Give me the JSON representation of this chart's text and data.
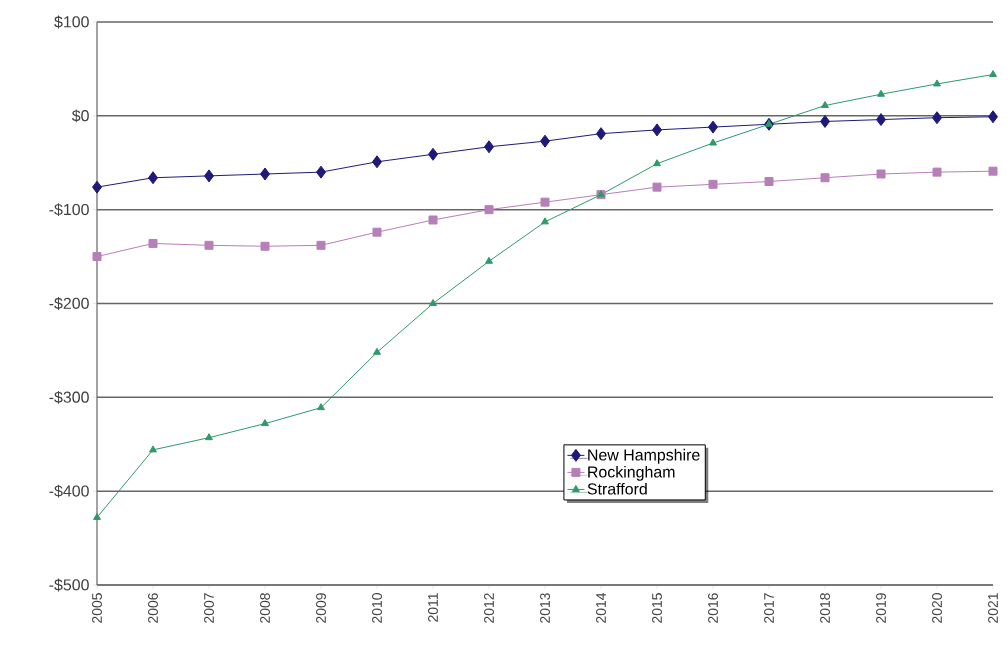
{
  "chart_data": {
    "type": "line",
    "categories": [
      "2005",
      "2006",
      "2007",
      "2008",
      "2009",
      "2010",
      "2011",
      "2012",
      "2013",
      "2014",
      "2015",
      "2016",
      "2017",
      "2018",
      "2019",
      "2020",
      "2021"
    ],
    "series": [
      {
        "name": "New Hampshire",
        "color": "#1f1a7a",
        "marker": "diamond",
        "values": [
          -76,
          -66,
          -64,
          -62,
          -60,
          -49,
          -41,
          -33,
          -27,
          -19,
          -15,
          -12,
          -9,
          -6,
          -4,
          -2,
          -1
        ]
      },
      {
        "name": "Rockingham",
        "color": "#b77fb7",
        "marker": "square",
        "values": [
          -150,
          -136,
          -138,
          -139,
          -138,
          -124,
          -111,
          -100,
          -92,
          -84,
          -76,
          -73,
          -70,
          -66,
          -62,
          -60,
          -59
        ]
      },
      {
        "name": "Strafford",
        "color": "#2e9a6a",
        "marker": "triangle",
        "values": [
          -428,
          -356,
          -343,
          -328,
          -311,
          -252,
          -200,
          -155,
          -113,
          -84,
          -51,
          -29,
          -9,
          11,
          23,
          34,
          44
        ]
      }
    ],
    "ylim": [
      -500,
      100
    ],
    "yticks": [
      {
        "value": -500,
        "label": "-$500"
      },
      {
        "value": -400,
        "label": "-$400"
      },
      {
        "value": -300,
        "label": "-$300"
      },
      {
        "value": -200,
        "label": "-$200"
      },
      {
        "value": -100,
        "label": "-$100"
      },
      {
        "value": 0,
        "label": "$0"
      },
      {
        "value": 100,
        "label": "$100"
      }
    ],
    "grid": "y",
    "legend": "bottom",
    "line_style": "solid"
  }
}
